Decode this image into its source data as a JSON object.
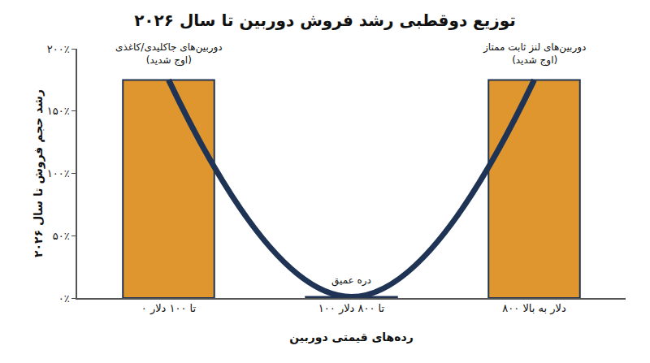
{
  "chart_data": {
    "type": "bar",
    "title": "توزیع دوقطبی رشد فروش دوربین تا سال ۲۰۲۶",
    "x_label": "رده‌های قیمتی دوربین",
    "y_label": "رشد حجم فروش تا سال ۲۰۲۶",
    "categories": [
      "۰ تا ۱۰۰ دلار",
      "۱۰۰ تا ۸۰۰ دلار",
      "۸۰۰ دلار به بالا"
    ],
    "series": [
      {
        "type": "bar",
        "color": "#e0962f",
        "values": [
          175,
          1,
          175
        ]
      },
      {
        "type": "line",
        "color": "#1f3354",
        "line_style": "solid",
        "values": [
          175,
          1,
          175
        ]
      }
    ],
    "ylim": [
      0,
      200
    ],
    "yticks": [
      {
        "value": 0,
        "label": "۰٪"
      },
      {
        "value": 50,
        "label": "۵۰٪"
      },
      {
        "value": 100,
        "label": "۱۰۰٪"
      },
      {
        "value": 150,
        "label": "۱۵۰٪"
      },
      {
        "value": 200,
        "label": "۲۰۰٪"
      }
    ],
    "grid": false,
    "legend": false,
    "annotations": [
      {
        "category": "۰ تا ۱۰۰ دلار",
        "text": "دوربین‌های جاکلیدی/کاغذی\n(اوج شدید)"
      },
      {
        "category": "۸۰۰ دلار به بالا",
        "text": "دوربین‌های لنز ثابت ممتاز\n(اوج شدید)"
      },
      {
        "category": "۱۰۰ تا ۸۰۰ دلار",
        "text": "دره عمیق"
      }
    ]
  }
}
